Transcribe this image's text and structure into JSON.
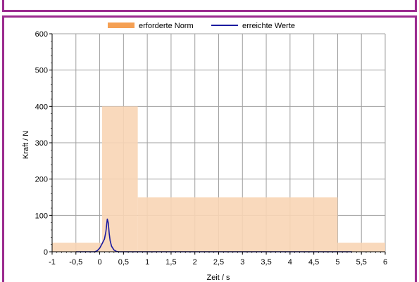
{
  "chart_data": {
    "type": "area",
    "xlabel": "Zeit / s",
    "ylabel": "Kraft / N",
    "xlim": [
      -1,
      6
    ],
    "ylim": [
      0,
      600
    ],
    "grid": true,
    "legend_placement": "top-center",
    "x_ticks": [
      "-1",
      "-0,5",
      "0",
      "0,5",
      "1",
      "1,5",
      "2",
      "2,5",
      "3",
      "3,5",
      "4",
      "4,5",
      "5",
      "5,5",
      "6"
    ],
    "y_ticks": [
      "0",
      "100",
      "200",
      "300",
      "400",
      "500",
      "600"
    ],
    "series": [
      {
        "name": "erforderte Norm",
        "kind": "step-area",
        "color": "#f8d5b5",
        "legend_color": "#f5a054",
        "segments": [
          {
            "x_start": -1,
            "x_end": 0.05,
            "y": 25
          },
          {
            "x_start": 0.05,
            "x_end": 0.8,
            "y": 400
          },
          {
            "x_start": 0.8,
            "x_end": 5,
            "y": 150
          },
          {
            "x_start": 5,
            "x_end": 6,
            "y": 25
          }
        ]
      },
      {
        "name": "erreichte Werte",
        "kind": "line",
        "color": "#1a1aa0",
        "x": [
          -0.5,
          -0.1,
          -0.05,
          0,
          0.05,
          0.1,
          0.13,
          0.16,
          0.18,
          0.2,
          0.22,
          0.25,
          0.3,
          0.35,
          0.4,
          1,
          2,
          3,
          4,
          5,
          5.3
        ],
        "y": [
          0,
          0,
          3,
          10,
          22,
          35,
          55,
          90,
          80,
          50,
          30,
          15,
          5,
          1,
          0,
          0,
          0,
          0,
          0,
          0,
          0
        ]
      }
    ]
  },
  "colors": {
    "frame_border": "#9b2a8f",
    "grid": "#a0a0a0"
  }
}
